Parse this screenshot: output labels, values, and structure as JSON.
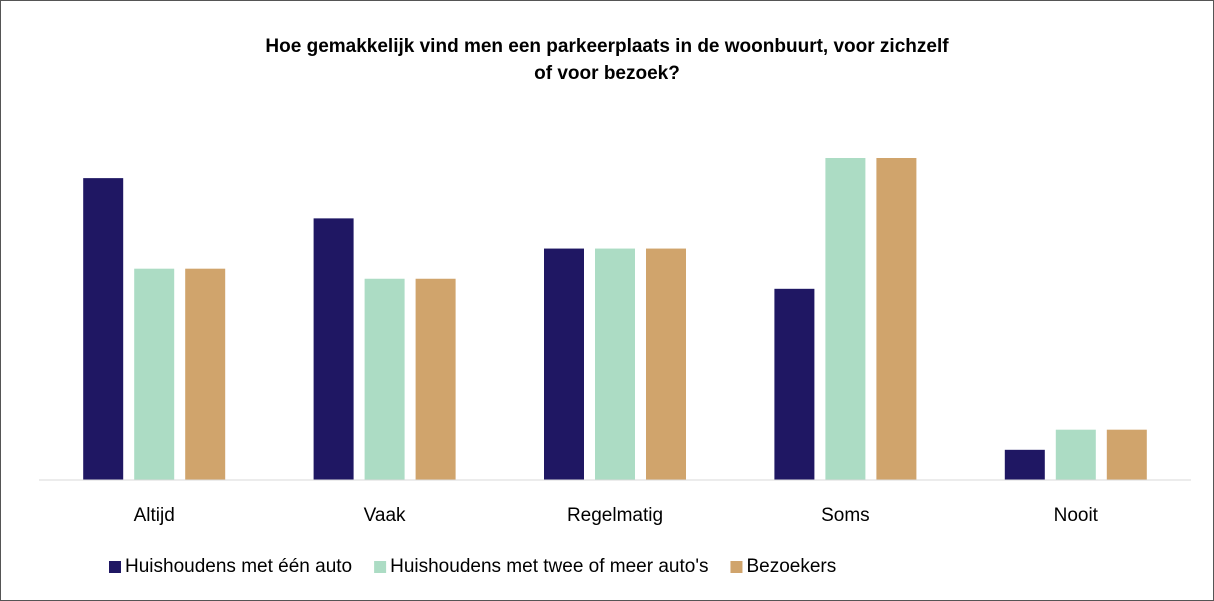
{
  "chart_data": {
    "type": "bar",
    "title": "Hoe gemakkelijk vind men een parkeerplaats in de woonbuurt, voor zichzelf of voor bezoek?",
    "categories": [
      "Altijd",
      "Vaak",
      "Regelmatig",
      "Soms",
      "Nooit"
    ],
    "series": [
      {
        "name": "Huishoudens met één auto",
        "color": "#1f1763",
        "values": [
          30,
          26,
          23,
          19,
          3
        ]
      },
      {
        "name": "Huishoudens met twee of meer auto's",
        "color": "#acdcc4",
        "values": [
          21,
          20,
          23,
          32,
          5
        ]
      },
      {
        "name": "Bezoekers",
        "color": "#d0a46c",
        "values": [
          21,
          20,
          23,
          32,
          5
        ]
      }
    ],
    "legend": "bottom"
  }
}
